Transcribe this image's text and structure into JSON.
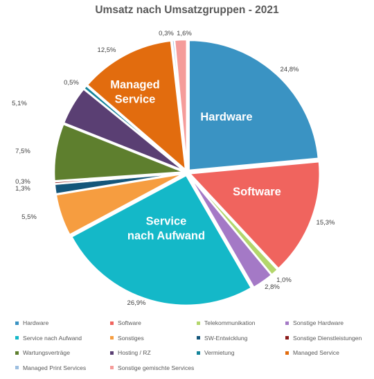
{
  "chart_data": {
    "type": "pie",
    "title": "Umsatz nach Umsatzgruppen - 2021",
    "legend_position": "bottom",
    "slices": [
      {
        "name": "Hardware",
        "value": 24.8,
        "label": "24,8%",
        "inside_label": "Hardware",
        "color": "#3A93C3"
      },
      {
        "name": "Software",
        "value": 15.3,
        "label": "15,3%",
        "inside_label": "Software",
        "color": "#F0645E"
      },
      {
        "name": "Telekommunikation",
        "value": 1.0,
        "label": "1,0%",
        "inside_label": "",
        "color": "#B3D66C"
      },
      {
        "name": "Sonstige Hardware",
        "value": 2.8,
        "label": "2,8%",
        "inside_label": "",
        "color": "#A479C6"
      },
      {
        "name": "Service nach Aufwand",
        "value": 26.9,
        "label": "26,9%",
        "inside_label": "Service\nnach Aufwand",
        "color": "#14B8C8"
      },
      {
        "name": "Sonstiges",
        "value": 5.5,
        "label": "5,5%",
        "inside_label": "",
        "color": "#F69D40"
      },
      {
        "name": "SW-Entwicklung",
        "value": 1.3,
        "label": "1,3%",
        "inside_label": "",
        "color": "#14567A"
      },
      {
        "name": "Sonstige Dienstleistungen",
        "value": 0.3,
        "label": "0,3%",
        "inside_label": "",
        "color": "#8B1A1A"
      },
      {
        "name": "Wartungsverträge",
        "value": 7.5,
        "label": "7,5%",
        "inside_label": "",
        "color": "#5E7F2E"
      },
      {
        "name": "Hosting / RZ",
        "value": 5.1,
        "label": "5,1%",
        "inside_label": "",
        "color": "#5A3F73"
      },
      {
        "name": "Vermietung",
        "value": 0.5,
        "label": "0,5%",
        "inside_label": "",
        "color": "#14849A"
      },
      {
        "name": "Managed Service",
        "value": 12.5,
        "label": "12,5%",
        "inside_label": "Managed\nService",
        "color": "#E26C0E"
      },
      {
        "name": "Managed Print Services",
        "value": 0.3,
        "label": "0,3%",
        "inside_label": "",
        "color": "#9DBFE0"
      },
      {
        "name": "Sonstige gemischte Services",
        "value": 1.6,
        "label": "1,6%",
        "inside_label": "",
        "color": "#F59C9A"
      }
    ]
  }
}
